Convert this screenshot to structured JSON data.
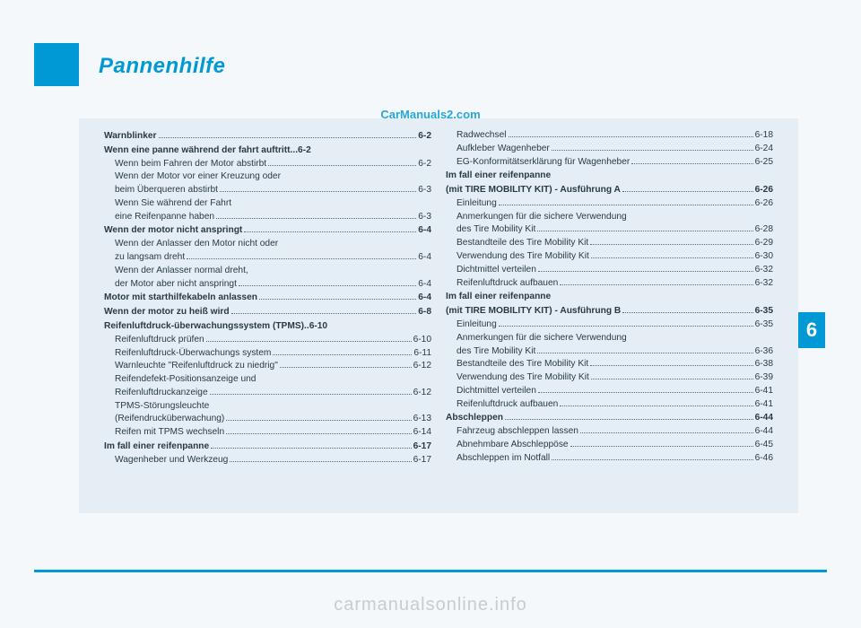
{
  "title": "Pannenhilfe",
  "watermark_top": "CarManuals2.com",
  "watermark_bottom": "carmanualsonline.info",
  "chapter_number": "6",
  "colors": {
    "accent": "#0099d6",
    "content_bg": "#e4eef4",
    "page_bg": "#f5f8fa",
    "text": "#2a3a44",
    "wm_gray": "#c6ccd0"
  },
  "left_col": [
    {
      "t": "Warnblinker",
      "p": "6-2",
      "l": 1
    },
    {
      "t": "Wenn eine panne während der fahrt auftritt",
      "p": "6-2",
      "l": 1,
      "nodots": true,
      "sep": " ..."
    },
    {
      "t": "Wenn beim Fahren der Motor abstirbt",
      "p": "6-2",
      "l": 2
    },
    {
      "t": "Wenn der Motor vor einer Kreuzung oder",
      "l": 2,
      "cont": true
    },
    {
      "t": "beim Überqueren abstirbt",
      "p": "6-3",
      "l": 2
    },
    {
      "t": "Wenn Sie während der Fahrt",
      "l": 2,
      "cont": true
    },
    {
      "t": "eine Reifenpanne haben",
      "p": "6-3",
      "l": 2
    },
    {
      "t": "Wenn der motor nicht anspringt",
      "p": "6-4",
      "l": 1
    },
    {
      "t": "Wenn der Anlasser den Motor nicht oder",
      "l": 2,
      "cont": true
    },
    {
      "t": "zu langsam dreht",
      "p": "6-4",
      "l": 2
    },
    {
      "t": "Wenn der Anlasser normal dreht,",
      "l": 2,
      "cont": true
    },
    {
      "t": "der Motor aber nicht anspringt",
      "p": "6-4",
      "l": 2
    },
    {
      "t": "Motor mit starthilfekabeln anlassen",
      "p": "6-4",
      "l": 1
    },
    {
      "t": "Wenn der motor zu heiß wird",
      "p": "6-8",
      "l": 1
    },
    {
      "t": "Reifenluftdruck-überwachungssystem (TPMS)",
      "p": "6-10",
      "l": 1,
      "nodots": true,
      "sep": ".."
    },
    {
      "t": "Reifenluftdruck prüfen",
      "p": "6-10",
      "l": 2
    },
    {
      "t": "Reifenluftdruck-Überwachungs system",
      "p": "6-11",
      "l": 2
    },
    {
      "t": "Warnleuchte \"Reifenluftdruck zu niedrig\"",
      "p": "6-12",
      "l": 2
    },
    {
      "t": "Reifendefekt-Positionsanzeige und",
      "l": 2,
      "cont": true
    },
    {
      "t": "Reifenluftdruckanzeige",
      "p": "6-12",
      "l": 2
    },
    {
      "t": "TPMS-Störungsleuchte",
      "l": 2,
      "cont": true
    },
    {
      "t": "(Reifendrucküberwachung)",
      "p": "6-13",
      "l": 2
    },
    {
      "t": "Reifen mit TPMS wechseln",
      "p": "6-14",
      "l": 2
    },
    {
      "t": "Im fall einer reifenpanne",
      "p": "6-17",
      "l": 1
    },
    {
      "t": "Wagenheber und Werkzeug",
      "p": "6-17",
      "l": 2
    }
  ],
  "right_col": [
    {
      "t": "Radwechsel",
      "p": "6-18",
      "l": 2
    },
    {
      "t": "Aufkleber Wagenheber",
      "p": "6-24",
      "l": 2
    },
    {
      "t": "EG-Konformitätserklärung für Wagenheber",
      "p": "6-25",
      "l": 2
    },
    {
      "t": "Im fall einer reifenpanne",
      "l": 1,
      "cont": true
    },
    {
      "t": "(mit TIRE MOBILITY KIT) - Ausführung A",
      "p": "6-26",
      "l": 1
    },
    {
      "t": "Einleitung",
      "p": "6-26",
      "l": 2
    },
    {
      "t": "Anmerkungen für die sichere Verwendung",
      "l": 2,
      "cont": true
    },
    {
      "t": "des Tire Mobility Kit",
      "p": "6-28",
      "l": 2
    },
    {
      "t": "Bestandteile des Tire Mobility Kit",
      "p": "6-29",
      "l": 2
    },
    {
      "t": "Verwendung des Tire Mobility Kit",
      "p": "6-30",
      "l": 2
    },
    {
      "t": "Dichtmittel verteilen",
      "p": "6-32",
      "l": 2
    },
    {
      "t": "Reifenluftdruck aufbauen",
      "p": "6-32",
      "l": 2
    },
    {
      "t": "Im fall einer reifenpanne",
      "l": 1,
      "cont": true
    },
    {
      "t": "(mit TIRE MOBILITY KIT) - Ausführung B",
      "p": "6-35",
      "l": 1
    },
    {
      "t": "Einleitung",
      "p": "6-35",
      "l": 2
    },
    {
      "t": "Anmerkungen für die sichere Verwendung",
      "l": 2,
      "cont": true
    },
    {
      "t": "des Tire Mobility Kit",
      "p": "6-36",
      "l": 2
    },
    {
      "t": "Bestandteile des Tire Mobility Kit",
      "p": "6-38",
      "l": 2
    },
    {
      "t": "Verwendung des Tire Mobility Kit",
      "p": "6-39",
      "l": 2
    },
    {
      "t": "Dichtmittel verteilen",
      "p": "6-41",
      "l": 2
    },
    {
      "t": "Reifenluftdruck aufbauen",
      "p": "6-41",
      "l": 2
    },
    {
      "t": "Abschleppen",
      "p": "6-44",
      "l": 1
    },
    {
      "t": "Fahrzeug abschleppen lassen",
      "p": "6-44",
      "l": 2
    },
    {
      "t": "Abnehmbare Abschleppöse",
      "p": "6-45",
      "l": 2
    },
    {
      "t": "Abschleppen im Notfall",
      "p": "6-46",
      "l": 2
    }
  ]
}
